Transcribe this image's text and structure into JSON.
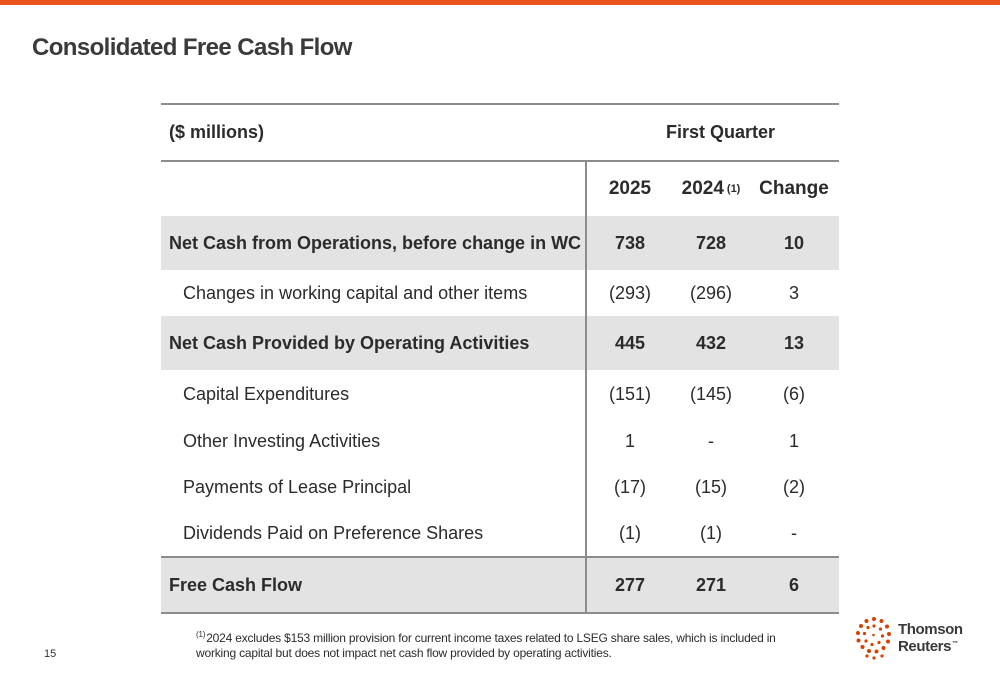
{
  "slide": {
    "title": "Consolidated Free Cash Flow",
    "page_number": "15",
    "accent_color": "#e8531d"
  },
  "table": {
    "units": "($ millions)",
    "period": "First Quarter",
    "columns": {
      "y2025": "2025",
      "y2024": "2024",
      "y2024_note": "(1)",
      "change": "Change"
    },
    "rows": [
      {
        "label": "Net Cash from Operations, before change in WC",
        "v2025": "738",
        "v2024": "728",
        "change": "10"
      },
      {
        "label": "Changes in working capital and other items",
        "v2025": "(293)",
        "v2024": "(296)",
        "change": "3"
      },
      {
        "label": "Net Cash Provided by Operating Activities",
        "v2025": "445",
        "v2024": "432",
        "change": "13"
      },
      {
        "label": "Capital Expenditures",
        "v2025": "(151)",
        "v2024": "(145)",
        "change": "(6)"
      },
      {
        "label": "Other Investing Activities",
        "v2025": "1",
        "v2024": "-",
        "change": "1"
      },
      {
        "label": "Payments of Lease Principal",
        "v2025": "(17)",
        "v2024": "(15)",
        "change": "(2)"
      },
      {
        "label": "Dividends Paid on Preference Shares",
        "v2025": "(1)",
        "v2024": "(1)",
        "change": "-"
      },
      {
        "label": "Free Cash Flow",
        "v2025": "277",
        "v2024": "271",
        "change": "6"
      }
    ]
  },
  "footnote": {
    "marker": "(1)",
    "text": "2024 excludes $153 million provision for current income taxes related to LSEG share sales, which is included in working capital but does not impact net cash flow provided by operating activities."
  },
  "logo": {
    "line1": "Thomson",
    "line2": "Reuters",
    "mark": "™",
    "icon": "dotted-circle-logo-icon",
    "color": "#d64000"
  }
}
